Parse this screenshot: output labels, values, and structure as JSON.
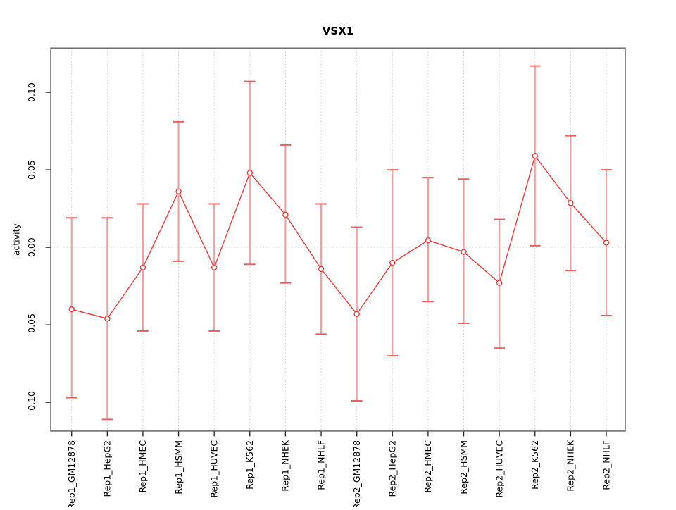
{
  "figure": {
    "title": "VSX1",
    "y_axis_label": "activity"
  },
  "chart_data": {
    "type": "line",
    "title": "VSX1",
    "xlabel": "",
    "ylabel": "activity",
    "categories": [
      "Rep1_GM12878",
      "Rep1_HepG2",
      "Rep1_HMEC",
      "Rep1_HSMM",
      "Rep1_HUVEC",
      "Rep1_K562",
      "Rep1_NHEK",
      "Rep1_NHLF",
      "Rep2_GM12878",
      "Rep2_HepG2",
      "Rep2_HMEC",
      "Rep2_HSMM",
      "Rep2_HUVEC",
      "Rep2_K562",
      "Rep2_NHEK",
      "Rep2_NHLF"
    ],
    "series": [
      {
        "name": "activity",
        "values": [
          -0.04,
          -0.046,
          -0.013,
          0.036,
          -0.013,
          0.048,
          0.021,
          -0.014,
          -0.043,
          -0.01,
          0.0045,
          -0.003,
          -0.023,
          0.059,
          0.0285,
          0.003
        ],
        "error_upper": [
          0.019,
          0.019,
          0.028,
          0.081,
          0.028,
          0.107,
          0.066,
          0.028,
          0.013,
          0.05,
          0.045,
          0.044,
          0.018,
          0.117,
          0.072,
          0.05
        ],
        "error_lower": [
          -0.097,
          -0.111,
          -0.054,
          -0.009,
          -0.054,
          -0.011,
          -0.023,
          -0.056,
          -0.099,
          -0.07,
          -0.035,
          -0.049,
          -0.065,
          0.001,
          -0.015,
          -0.044
        ]
      }
    ],
    "yticks": [
      -0.1,
      -0.05,
      0.0,
      0.05,
      0.1
    ],
    "ytick_labels": [
      "-0.10",
      "-0.05",
      "0.00",
      "0.05",
      "0.10"
    ],
    "ylim": [
      -0.1185,
      0.1285
    ],
    "grid": {
      "vertical_gridlines": "dotted, one per category",
      "zero_line": "dotted"
    },
    "legend_position": "none",
    "colors": {
      "series_line": "#f43b3b",
      "point_stroke": "#f43b3b",
      "point_fill": "#ffffff",
      "error_bar": "#f4a0a0",
      "error_cap": "#ea6060",
      "gridline": "#d6d6d6",
      "box": "#6e6e6e",
      "tick": "#1a1a1a",
      "text": "#000000",
      "background": "#ffffff"
    }
  }
}
